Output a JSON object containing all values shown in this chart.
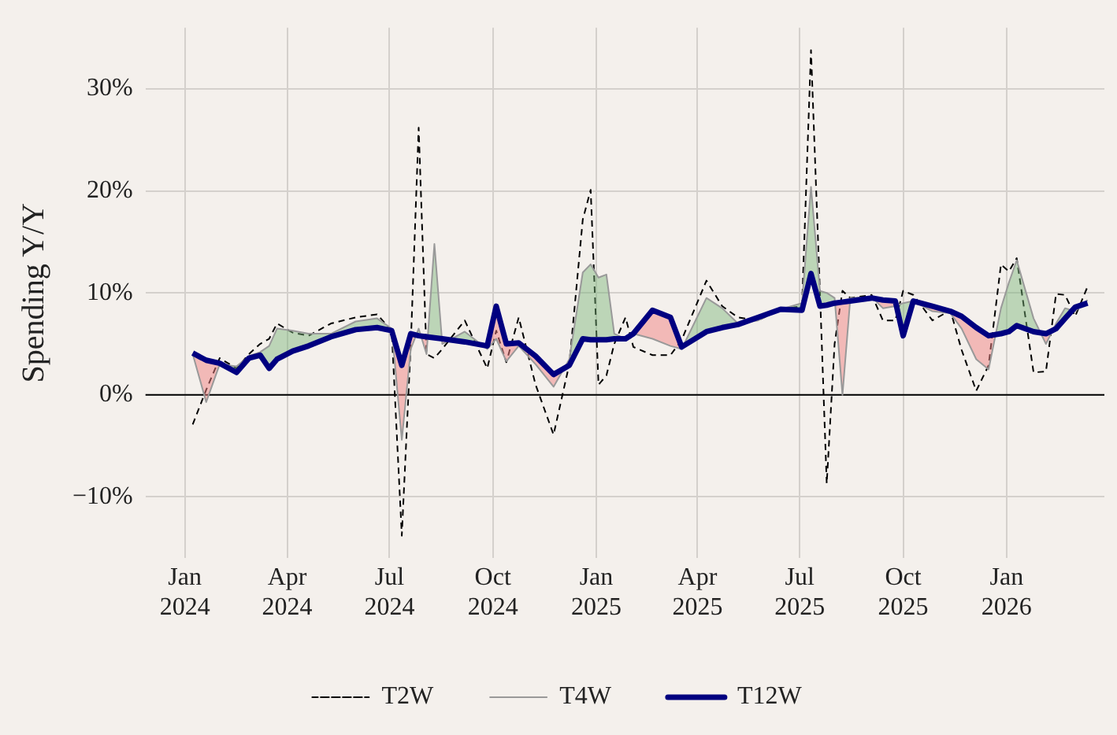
{
  "chart_data": {
    "type": "line",
    "ylabel": "Spending Y/Y",
    "x": [
      "2024-01-08",
      "2024-01-20",
      "2024-02-01",
      "2024-02-16",
      "2024-02-27",
      "2024-03-08",
      "2024-03-16",
      "2024-03-23",
      "2024-04-06",
      "2024-04-20",
      "2024-05-10",
      "2024-06-01",
      "2024-06-20",
      "2024-07-03",
      "2024-07-12",
      "2024-07-20",
      "2024-07-27",
      "2024-08-03",
      "2024-08-10",
      "2024-08-17",
      "2024-09-06",
      "2024-09-26",
      "2024-10-04",
      "2024-10-13",
      "2024-10-24",
      "2024-11-08",
      "2024-11-24",
      "2024-12-08",
      "2024-12-20",
      "2024-12-27",
      "2025-01-03",
      "2025-01-10",
      "2025-01-17",
      "2025-01-27",
      "2025-02-03",
      "2025-02-20",
      "2025-03-08",
      "2025-03-18",
      "2025-04-09",
      "2025-04-23",
      "2025-05-07",
      "2025-05-25",
      "2025-06-14",
      "2025-07-03",
      "2025-07-11",
      "2025-07-19",
      "2025-07-25",
      "2025-08-01",
      "2025-08-08",
      "2025-08-15",
      "2025-09-03",
      "2025-09-13",
      "2025-09-24",
      "2025-10-01",
      "2025-10-10",
      "2025-10-27",
      "2025-11-12",
      "2025-11-22",
      "2025-12-05",
      "2025-12-16",
      "2025-12-27",
      "2026-01-03",
      "2026-01-10",
      "2026-01-25",
      "2026-02-05",
      "2026-02-14",
      "2026-02-22",
      "2026-03-03",
      "2026-03-14"
    ],
    "series": [
      {
        "name": "T2W",
        "color": "#000000",
        "line_style": "dashed",
        "values": [
          -2.9,
          0.5,
          3.6,
          2.6,
          4.0,
          5.0,
          5.5,
          7.0,
          6.1,
          5.8,
          7.0,
          7.6,
          7.9,
          6.3,
          -13.8,
          5.0,
          26.2,
          4.0,
          3.6,
          4.5,
          7.3,
          2.6,
          6.3,
          3.2,
          7.6,
          1.0,
          -3.9,
          3.0,
          17.2,
          20.1,
          1.0,
          1.9,
          5.0,
          7.6,
          4.7,
          3.9,
          3.9,
          5.4,
          11.2,
          8.7,
          7.6,
          7.3,
          8.4,
          8.7,
          33.8,
          10.0,
          -8.7,
          5.0,
          10.2,
          9.5,
          9.8,
          7.3,
          7.3,
          10.2,
          9.8,
          7.3,
          8.3,
          4.4,
          0.4,
          2.9,
          12.8,
          12.1,
          13.4,
          2.2,
          2.3,
          9.9,
          9.8,
          7.7,
          10.6
        ]
      },
      {
        "name": "T4W",
        "color": "#999999",
        "line_style": "solid",
        "values": [
          4.0,
          -0.7,
          3.0,
          2.8,
          3.8,
          4.2,
          4.8,
          6.5,
          6.3,
          6.0,
          6.0,
          7.2,
          7.5,
          6.5,
          -4.4,
          4.5,
          6.5,
          4.0,
          14.8,
          5.0,
          6.2,
          4.5,
          5.5,
          3.3,
          4.8,
          3.0,
          0.8,
          3.5,
          12.0,
          12.8,
          11.5,
          11.8,
          6.0,
          5.5,
          6.0,
          5.5,
          4.8,
          4.5,
          9.5,
          8.5,
          7.0,
          7.3,
          8.4,
          9.0,
          20.4,
          10.2,
          10.0,
          9.5,
          0.0,
          9.5,
          9.6,
          8.5,
          8.7,
          9.0,
          9.2,
          8.2,
          8.0,
          6.5,
          3.5,
          2.5,
          8.5,
          11.0,
          13.2,
          7.5,
          5.0,
          7.0,
          8.5,
          8.2,
          9.3
        ]
      },
      {
        "name": "T12W",
        "color": "#000080",
        "line_style": "solid",
        "values": [
          4.1,
          3.4,
          3.1,
          2.2,
          3.6,
          3.9,
          2.6,
          3.5,
          4.3,
          4.8,
          5.7,
          6.4,
          6.6,
          6.3,
          2.9,
          6.0,
          5.8,
          5.7,
          5.6,
          5.5,
          5.2,
          4.8,
          8.7,
          5.0,
          5.1,
          3.8,
          2.0,
          2.9,
          5.5,
          5.4,
          5.4,
          5.4,
          5.5,
          5.5,
          6.0,
          8.3,
          7.6,
          4.7,
          6.2,
          6.6,
          6.9,
          7.6,
          8.4,
          8.3,
          11.9,
          8.7,
          8.8,
          9.0,
          9.1,
          9.2,
          9.5,
          9.3,
          9.2,
          5.8,
          9.2,
          8.7,
          8.2,
          7.7,
          6.6,
          5.8,
          6.0,
          6.2,
          6.8,
          6.2,
          6.0,
          6.5,
          7.5,
          8.6,
          9.0
        ]
      }
    ],
    "xlim": [
      "2023-11-27",
      "2026-03-29"
    ],
    "xticks": [
      {
        "value": "2024-01-01",
        "label": "Jan 2024"
      },
      {
        "value": "2024-04-01",
        "label": "Apr 2024"
      },
      {
        "value": "2024-07-01",
        "label": "Jul 2024"
      },
      {
        "value": "2024-10-01",
        "label": "Oct 2024"
      },
      {
        "value": "2025-01-01",
        "label": "Jan 2025"
      },
      {
        "value": "2025-04-01",
        "label": "Apr 2025"
      },
      {
        "value": "2025-07-01",
        "label": "Jul 2025"
      },
      {
        "value": "2025-10-01",
        "label": "Oct 2025"
      },
      {
        "value": "2026-01-01",
        "label": "Jan 2026"
      }
    ],
    "ylim": [
      -16,
      36
    ],
    "yticks": [
      {
        "value": -10,
        "label": "−10%"
      },
      {
        "value": 0,
        "label": "0%"
      },
      {
        "value": 10,
        "label": "10%"
      },
      {
        "value": 20,
        "label": "20%"
      },
      {
        "value": 30,
        "label": "30%"
      }
    ],
    "ref_lines": [
      {
        "axis": "y",
        "value": 0,
        "color": "#000000"
      }
    ],
    "grid": true,
    "legend": "bottom",
    "marker": "none"
  }
}
